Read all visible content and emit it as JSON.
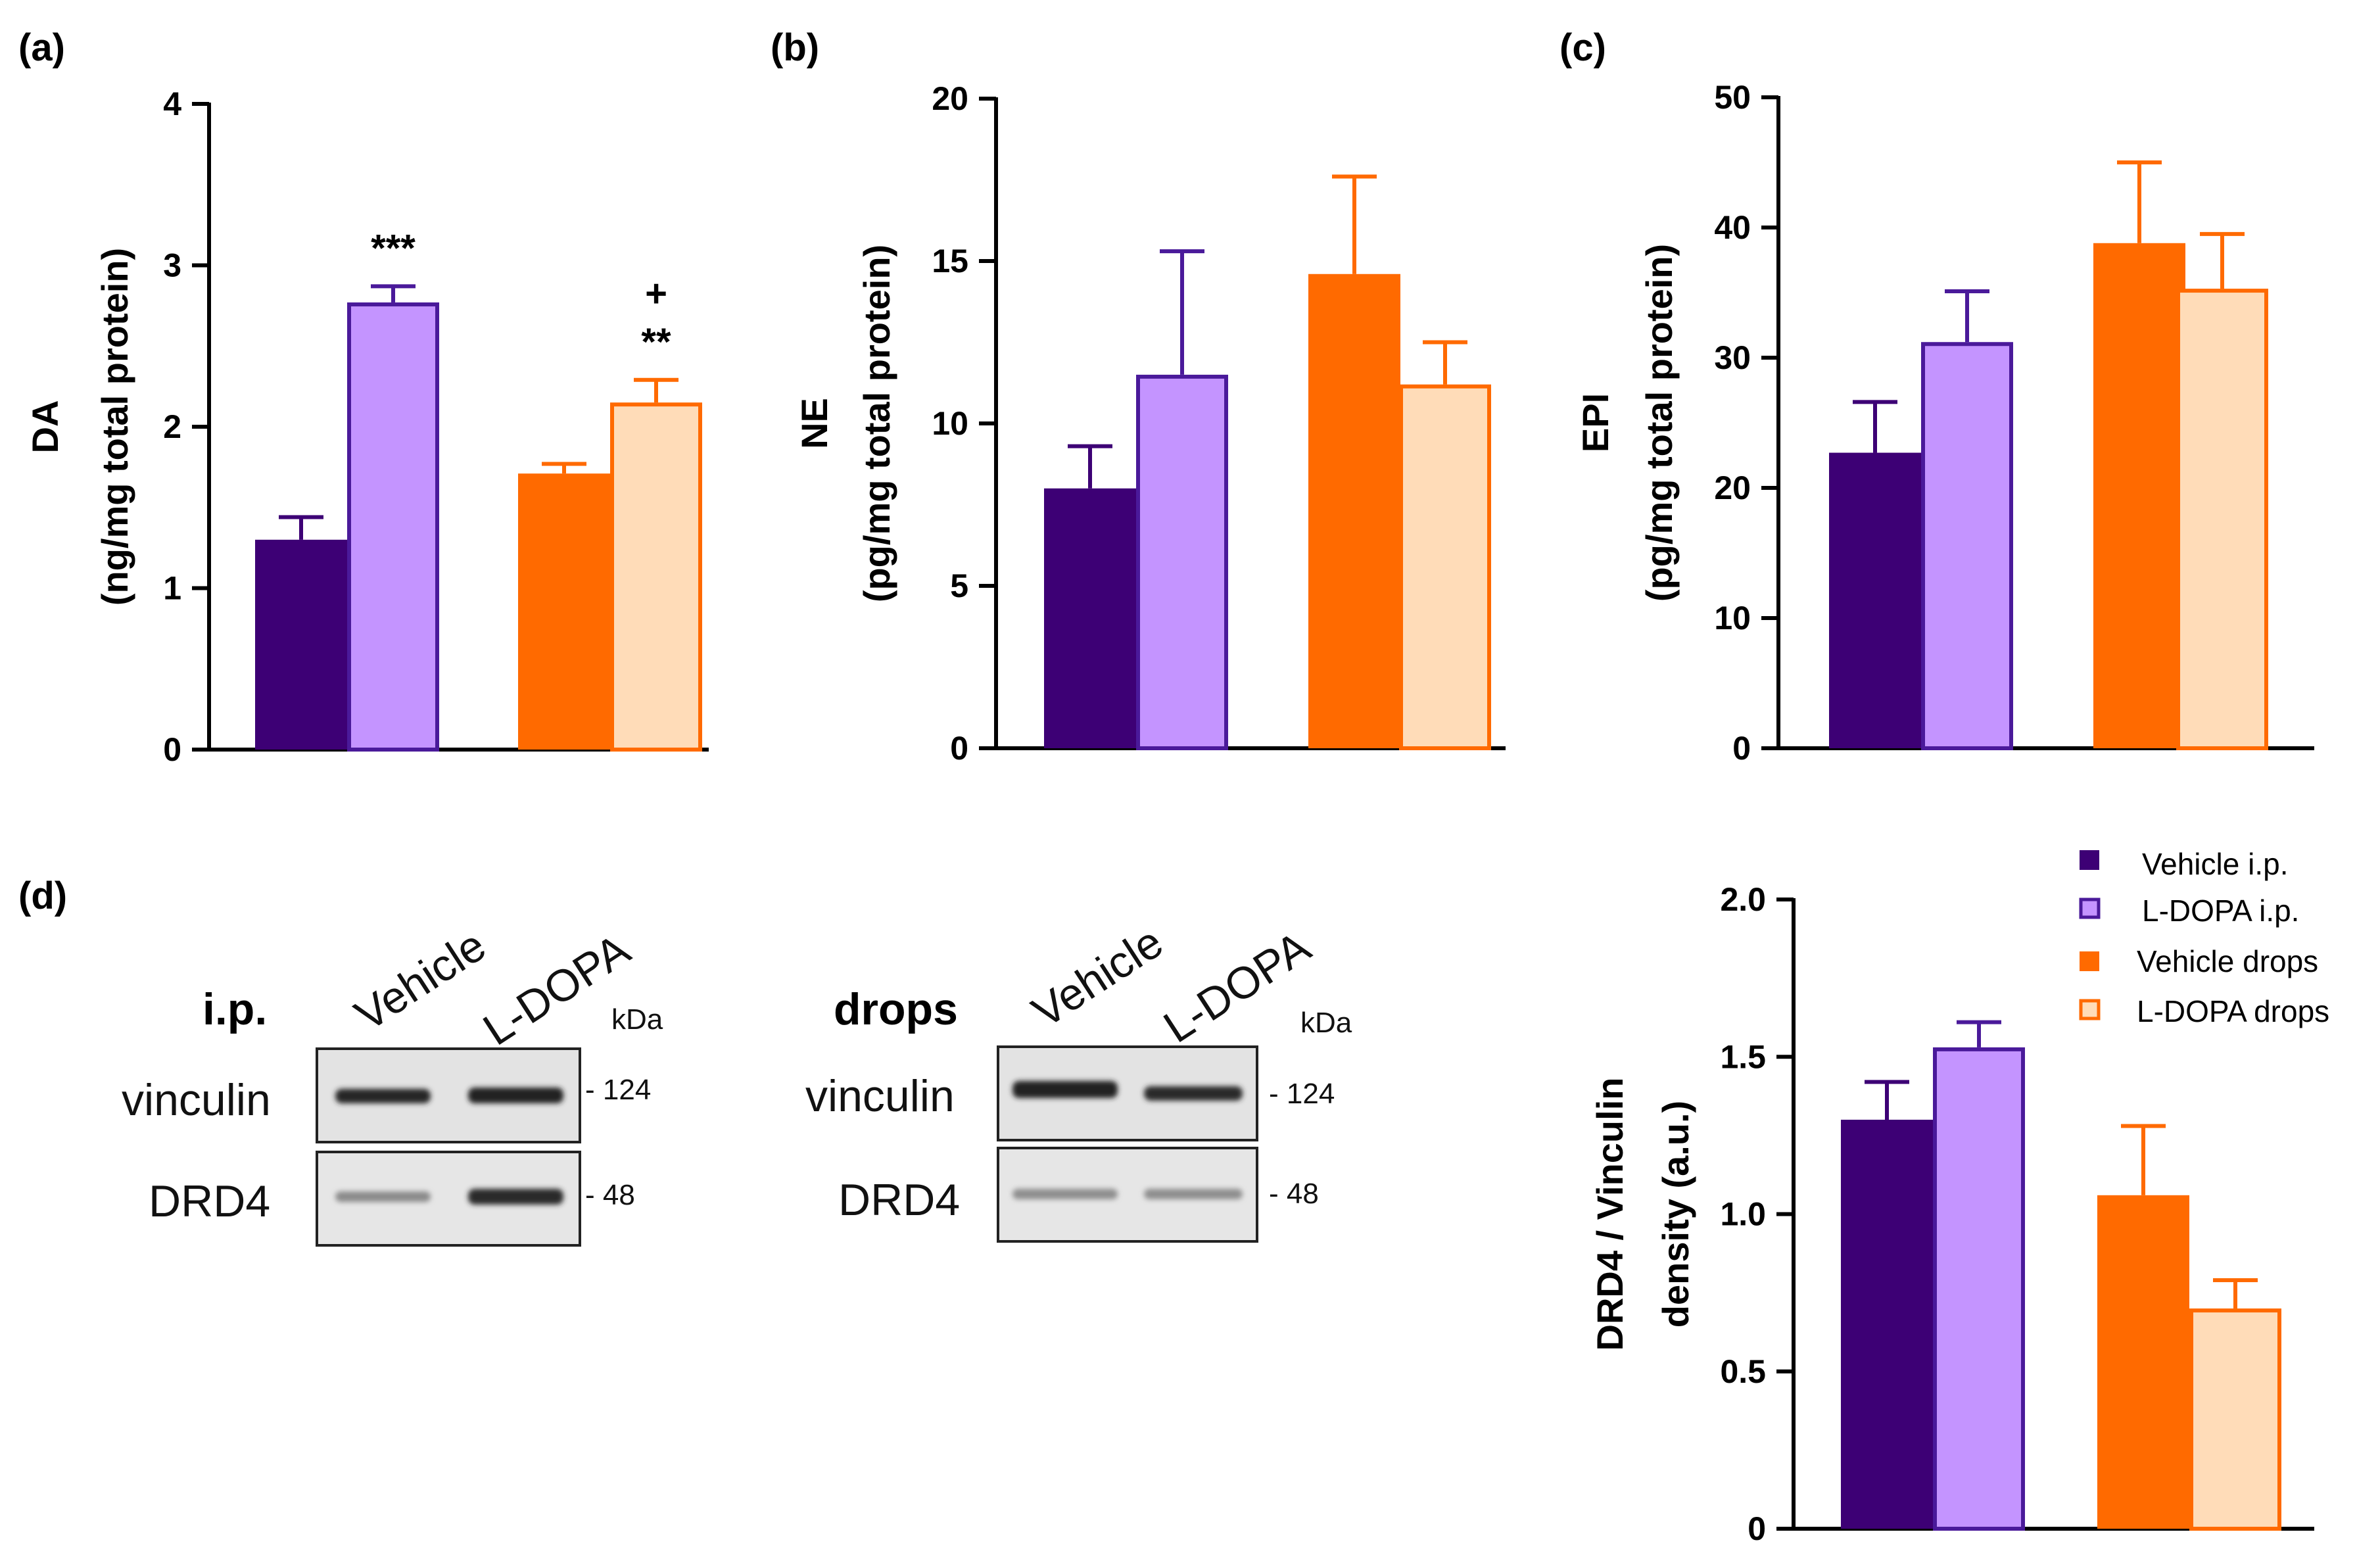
{
  "colors": {
    "vehicle_ip": "#3d0075",
    "ldopa_ip_fill": "#c494ff",
    "ldopa_ip_edge": "#4a1a9a",
    "vehicle_drops": "#ff6a00",
    "ldopa_drops_fill": "#ffdcb8",
    "ldopa_drops_edge": "#ff6a00"
  },
  "panels": {
    "a": "(a)",
    "b": "(b)",
    "c": "(c)",
    "d": "(d)"
  },
  "legend": [
    {
      "label": "Vehicle i.p.",
      "key": "vehicle_ip"
    },
    {
      "label": "L-DOPA i.p.",
      "key": "ldopa_ip"
    },
    {
      "label": "Vehicle drops",
      "key": "vehicle_drops"
    },
    {
      "label": "L-DOPA drops",
      "key": "ldopa_drops"
    }
  ],
  "chart_data": [
    {
      "id": "a",
      "type": "bar",
      "ylabel_line1": "DA",
      "ylabel_line2": "(ng/mg total protein)",
      "ylim": [
        0,
        4
      ],
      "yticks": [
        "0",
        "1",
        "2",
        "3",
        "4"
      ],
      "categories": [
        "Vehicle i.p.",
        "L-DOPA i.p.",
        "Vehicle drops",
        "L-DOPA drops"
      ],
      "values": [
        1.3,
        2.77,
        1.71,
        2.15
      ],
      "errors": [
        0.14,
        0.1,
        0.06,
        0.14
      ],
      "annotations": [
        {
          "bar": 1,
          "text": "***"
        },
        {
          "bar": 3,
          "text": "**"
        },
        {
          "bar": 3,
          "text": "+"
        }
      ]
    },
    {
      "id": "b",
      "type": "bar",
      "ylabel_line1": "NE",
      "ylabel_line2": "(pg/mg total protein)",
      "ylim": [
        0,
        20
      ],
      "yticks": [
        "0",
        "5",
        "10",
        "15",
        "20"
      ],
      "categories": [
        "Vehicle i.p.",
        "L-DOPA i.p.",
        "Vehicle drops",
        "L-DOPA drops"
      ],
      "values": [
        8.0,
        11.5,
        14.6,
        11.2
      ],
      "errors": [
        1.3,
        3.8,
        3.0,
        1.3
      ],
      "annotations": []
    },
    {
      "id": "c",
      "type": "bar",
      "ylabel_line1": "EPI",
      "ylabel_line2": "(pg/mg total protein)",
      "ylim": [
        0,
        50
      ],
      "yticks": [
        "0",
        "10",
        "20",
        "30",
        "40",
        "50"
      ],
      "categories": [
        "Vehicle i.p.",
        "L-DOPA i.p.",
        "Vehicle drops",
        "L-DOPA drops"
      ],
      "values": [
        22.7,
        31.2,
        38.8,
        35.3
      ],
      "errors": [
        3.9,
        3.9,
        6.2,
        4.2
      ],
      "annotations": []
    },
    {
      "id": "d",
      "type": "bar",
      "ylabel_line1": "DRD4 / Vinculin",
      "ylabel_line2": "density (a.u.)",
      "ylim": [
        0,
        2
      ],
      "yticks": [
        "0",
        "0.5",
        "1.0",
        "1.5",
        "2.0"
      ],
      "categories": [
        "Vehicle i.p.",
        "L-DOPA i.p.",
        "Vehicle drops",
        "L-DOPA drops"
      ],
      "values": [
        1.3,
        1.53,
        1.06,
        0.7
      ],
      "errors": [
        0.12,
        0.08,
        0.22,
        0.09
      ],
      "annotations": []
    }
  ],
  "blots": [
    {
      "group_label": "i.p.",
      "lanes": [
        "Vehicle",
        "L-DOPA"
      ],
      "kda_label": "kDa",
      "rows": [
        {
          "protein": "vinculin",
          "marker": "- 124"
        },
        {
          "protein": "DRD4",
          "marker": "- 48"
        }
      ]
    },
    {
      "group_label": "drops",
      "lanes": [
        "Vehicle",
        "L-DOPA"
      ],
      "kda_label": "kDa",
      "rows": [
        {
          "protein": "vinculin",
          "marker": "- 124"
        },
        {
          "protein": "DRD4",
          "marker": "- 48"
        }
      ]
    }
  ]
}
